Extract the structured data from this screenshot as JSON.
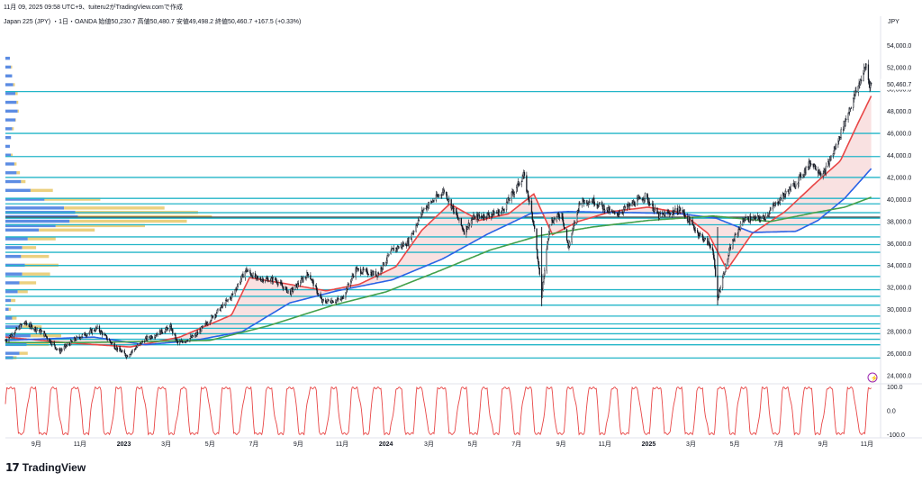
{
  "header": {
    "line1": "11月 09, 2025 09:58 UTC+9、tuiteru2がTradingView.comで作成",
    "line2": "Japan 225 (JPY) ・1日・OANDA 始値50,230.7 高値50,480.7 安値49,498.2 終値50,460.7 +167.5 (+0.33%)"
  },
  "footer": {
    "logo_mark": "17",
    "logo_text": "TradingView"
  },
  "colors": {
    "candle": "#131722",
    "ma_short": "#e84646",
    "ma_mid": "#2a62e6",
    "ma_long": "#44a04a",
    "level_line": "#22b5c8",
    "profile_blue": "#4a7fe0",
    "profile_yellow": "#e8c868",
    "poc_line": "#444444",
    "osc_line": "#e84646",
    "fill_pink": "#f7d7d7",
    "fill_blue": "#cfdcf5"
  },
  "chart_data": [
    {
      "type": "line",
      "series_type": "candlestick with moving averages, horizontal levels and volume profile",
      "currency_label": "JPY",
      "y_ticks": [
        "54,000.0",
        "52,000.0",
        "50,000.0",
        "48,000.0",
        "46,000.0",
        "44,000.0",
        "42,000.0",
        "40,000.0",
        "38,000.0",
        "36,000.0",
        "34,000.0",
        "32,000.0",
        "30,000.0",
        "28,000.0",
        "26,000.0",
        "24,000.0"
      ],
      "ylim": [
        23500,
        55500
      ],
      "last_price_label": "50,460.7",
      "last_price": 50460.7,
      "x_ticks": [
        {
          "label": "9月",
          "date": "2022-09-01"
        },
        {
          "label": "11月",
          "date": "2022-11-01"
        },
        {
          "label": "2023",
          "date": "2023-01-01"
        },
        {
          "label": "3月",
          "date": "2023-03-01"
        },
        {
          "label": "5月",
          "date": "2023-05-01"
        },
        {
          "label": "7月",
          "date": "2023-07-01"
        },
        {
          "label": "9月",
          "date": "2023-09-01"
        },
        {
          "label": "11月",
          "date": "2023-11-01"
        },
        {
          "label": "2024",
          "date": "2024-01-01"
        },
        {
          "label": "3月",
          "date": "2024-03-01"
        },
        {
          "label": "5月",
          "date": "2024-05-01"
        },
        {
          "label": "7月",
          "date": "2024-07-01"
        },
        {
          "label": "9月",
          "date": "2024-09-01"
        },
        {
          "label": "11月",
          "date": "2024-11-01"
        },
        {
          "label": "2025",
          "date": "2025-01-01"
        },
        {
          "label": "3月",
          "date": "2025-03-01"
        },
        {
          "label": "5月",
          "date": "2025-05-01"
        },
        {
          "label": "7月",
          "date": "2025-07-01"
        },
        {
          "label": "9月",
          "date": "2025-09-01"
        },
        {
          "label": "11月",
          "date": "2025-11-01"
        }
      ],
      "x_range": [
        "2022-07-20",
        "2025-11-20"
      ],
      "price_path": [
        [
          "2022-07-20",
          27200
        ],
        [
          "2022-08-15",
          28800
        ],
        [
          "2022-09-10",
          27900
        ],
        [
          "2022-10-03",
          26200
        ],
        [
          "2022-10-25",
          27300
        ],
        [
          "2022-11-25",
          28300
        ],
        [
          "2022-12-20",
          26600
        ],
        [
          "2023-01-05",
          25800
        ],
        [
          "2023-01-31",
          27300
        ],
        [
          "2023-03-07",
          28400
        ],
        [
          "2023-03-17",
          26900
        ],
        [
          "2023-04-10",
          27600
        ],
        [
          "2023-05-01",
          29100
        ],
        [
          "2023-05-31",
          31200
        ],
        [
          "2023-06-20",
          33600
        ],
        [
          "2023-07-05",
          32800
        ],
        [
          "2023-07-31",
          32700
        ],
        [
          "2023-08-20",
          31500
        ],
        [
          "2023-09-15",
          33300
        ],
        [
          "2023-10-04",
          30700
        ],
        [
          "2023-10-31",
          30900
        ],
        [
          "2023-11-20",
          33600
        ],
        [
          "2023-12-20",
          33200
        ],
        [
          "2024-01-10",
          35400
        ],
        [
          "2024-02-01",
          36100
        ],
        [
          "2024-02-22",
          39100
        ],
        [
          "2024-03-22",
          40800
        ],
        [
          "2024-04-19",
          37100
        ],
        [
          "2024-05-01",
          38300
        ],
        [
          "2024-06-10",
          38900
        ],
        [
          "2024-07-11",
          42200
        ],
        [
          "2024-07-25",
          37800
        ],
        [
          "2024-08-05",
          31200
        ],
        [
          "2024-08-16",
          37900
        ],
        [
          "2024-09-02",
          38700
        ],
        [
          "2024-09-11",
          35600
        ],
        [
          "2024-09-27",
          39800
        ],
        [
          "2024-10-15",
          39900
        ],
        [
          "2024-11-15",
          38600
        ],
        [
          "2024-12-27",
          40300
        ],
        [
          "2025-01-15",
          38500
        ],
        [
          "2025-02-15",
          39100
        ],
        [
          "2025-03-10",
          37000
        ],
        [
          "2025-03-31",
          35600
        ],
        [
          "2025-04-07",
          31100
        ],
        [
          "2025-04-25",
          35700
        ],
        [
          "2025-05-13",
          38200
        ],
        [
          "2025-06-10",
          38300
        ],
        [
          "2025-07-01",
          39900
        ],
        [
          "2025-07-25",
          41500
        ],
        [
          "2025-08-15",
          43400
        ],
        [
          "2025-09-01",
          42200
        ],
        [
          "2025-09-20",
          45000
        ],
        [
          "2025-10-06",
          47900
        ],
        [
          "2025-10-31",
          52200
        ],
        [
          "2025-11-04",
          50500
        ],
        [
          "2025-11-07",
          50460
        ]
      ],
      "moving_averages": [
        {
          "color": "ma_short",
          "points": [
            [
              "2022-07-20",
              27500
            ],
            [
              "2022-10-10",
              27000
            ],
            [
              "2023-01-10",
              26600
            ],
            [
              "2023-03-20",
              27500
            ],
            [
              "2023-05-31",
              29500
            ],
            [
              "2023-06-25",
              32900
            ],
            [
              "2023-08-10",
              32400
            ],
            [
              "2023-10-10",
              31700
            ],
            [
              "2023-11-25",
              32300
            ],
            [
              "2024-01-15",
              33900
            ],
            [
              "2024-02-20",
              37200
            ],
            [
              "2024-03-30",
              39600
            ],
            [
              "2024-05-10",
              38100
            ],
            [
              "2024-06-20",
              38700
            ],
            [
              "2024-07-25",
              40500
            ],
            [
              "2024-08-20",
              36800
            ],
            [
              "2024-09-25",
              38000
            ],
            [
              "2024-11-10",
              38900
            ],
            [
              "2024-12-31",
              39300
            ],
            [
              "2025-02-15",
              38800
            ],
            [
              "2025-03-25",
              36900
            ],
            [
              "2025-04-20",
              33600
            ],
            [
              "2025-05-25",
              36900
            ],
            [
              "2025-07-10",
              38900
            ],
            [
              "2025-08-20",
              41400
            ],
            [
              "2025-09-25",
              43500
            ],
            [
              "2025-10-20",
              47000
            ],
            [
              "2025-11-07",
              49400
            ]
          ]
        },
        {
          "color": "ma_mid",
          "points": [
            [
              "2022-07-20",
              27200
            ],
            [
              "2022-11-20",
              27500
            ],
            [
              "2023-01-31",
              26800
            ],
            [
              "2023-04-10",
              27200
            ],
            [
              "2023-06-15",
              28000
            ],
            [
              "2023-08-20",
              30600
            ],
            [
              "2023-10-25",
              31700
            ],
            [
              "2024-01-10",
              32700
            ],
            [
              "2024-03-20",
              34600
            ],
            [
              "2024-05-20",
              36800
            ],
            [
              "2024-07-20",
              38700
            ],
            [
              "2024-09-10",
              38900
            ],
            [
              "2024-12-10",
              38800
            ],
            [
              "2025-02-15",
              38700
            ],
            [
              "2025-04-05",
              38300
            ],
            [
              "2025-05-25",
              37000
            ],
            [
              "2025-07-25",
              37100
            ],
            [
              "2025-08-25",
              38100
            ],
            [
              "2025-10-01",
              40100
            ],
            [
              "2025-11-07",
              42800
            ]
          ]
        },
        {
          "color": "ma_long",
          "points": [
            [
              "2022-07-20",
              27000
            ],
            [
              "2022-11-01",
              27000
            ],
            [
              "2023-02-01",
              27100
            ],
            [
              "2023-05-01",
              27200
            ],
            [
              "2023-07-20",
              28500
            ],
            [
              "2023-10-20",
              30400
            ],
            [
              "2024-01-01",
              31600
            ],
            [
              "2024-03-15",
              33500
            ],
            [
              "2024-05-25",
              35400
            ],
            [
              "2024-08-01",
              36700
            ],
            [
              "2024-10-15",
              37500
            ],
            [
              "2025-01-01",
              38100
            ],
            [
              "2025-04-01",
              38500
            ],
            [
              "2025-06-20",
              38000
            ],
            [
              "2025-08-20",
              38800
            ],
            [
              "2025-10-01",
              39300
            ],
            [
              "2025-11-07",
              40200
            ]
          ]
        }
      ],
      "horizontal_levels": [
        49800,
        46000,
        43900,
        42000,
        40100,
        39600,
        38800,
        38300,
        37700,
        36600,
        35900,
        35200,
        34000,
        33000,
        31800,
        31200,
        30400,
        29400,
        28700,
        28300,
        27800,
        27300,
        26800,
        25600
      ],
      "volume_profile": [
        {
          "price": 52800,
          "blue": 8,
          "yellow": 0
        },
        {
          "price": 52000,
          "blue": 10,
          "yellow": 2
        },
        {
          "price": 51200,
          "blue": 12,
          "yellow": 0
        },
        {
          "price": 50400,
          "blue": 14,
          "yellow": 3
        },
        {
          "price": 49600,
          "blue": 18,
          "yellow": 4
        },
        {
          "price": 48800,
          "blue": 20,
          "yellow": 3
        },
        {
          "price": 48000,
          "blue": 22,
          "yellow": 2
        },
        {
          "price": 47200,
          "blue": 18,
          "yellow": 1
        },
        {
          "price": 46400,
          "blue": 12,
          "yellow": 3
        },
        {
          "price": 45600,
          "blue": 10,
          "yellow": 0
        },
        {
          "price": 44800,
          "blue": 8,
          "yellow": 0
        },
        {
          "price": 44000,
          "blue": 10,
          "yellow": 3
        },
        {
          "price": 43200,
          "blue": 16,
          "yellow": 4
        },
        {
          "price": 42400,
          "blue": 20,
          "yellow": 6
        },
        {
          "price": 41600,
          "blue": 28,
          "yellow": 8
        },
        {
          "price": 40800,
          "blue": 45,
          "yellow": 40
        },
        {
          "price": 40000,
          "blue": 70,
          "yellow": 100
        },
        {
          "price": 39200,
          "blue": 105,
          "yellow": 180
        },
        {
          "price": 38800,
          "blue": 125,
          "yellow": 220
        },
        {
          "price": 38400,
          "blue": 130,
          "yellow": 240
        },
        {
          "price": 38000,
          "blue": 115,
          "yellow": 210
        },
        {
          "price": 37600,
          "blue": 90,
          "yellow": 160
        },
        {
          "price": 37200,
          "blue": 60,
          "yellow": 100
        },
        {
          "price": 36400,
          "blue": 40,
          "yellow": 50
        },
        {
          "price": 35600,
          "blue": 30,
          "yellow": 25
        },
        {
          "price": 34800,
          "blue": 28,
          "yellow": 50
        },
        {
          "price": 34000,
          "blue": 35,
          "yellow": 60
        },
        {
          "price": 33200,
          "blue": 30,
          "yellow": 50
        },
        {
          "price": 32400,
          "blue": 25,
          "yellow": 30
        },
        {
          "price": 31600,
          "blue": 22,
          "yellow": 18
        },
        {
          "price": 30800,
          "blue": 10,
          "yellow": 8
        },
        {
          "price": 30000,
          "blue": 6,
          "yellow": 4
        },
        {
          "price": 29200,
          "blue": 12,
          "yellow": 8
        },
        {
          "price": 28400,
          "blue": 30,
          "yellow": 35
        },
        {
          "price": 27600,
          "blue": 45,
          "yellow": 55
        },
        {
          "price": 26800,
          "blue": 38,
          "yellow": 40
        },
        {
          "price": 26000,
          "blue": 25,
          "yellow": 15
        },
        {
          "price": 25600,
          "blue": 14,
          "yellow": 6
        }
      ],
      "poc_price": 38400,
      "oscillator": {
        "y_ticks": [
          "100.0",
          "0.0",
          "-100.0"
        ],
        "ylim": [
          -105,
          105
        ],
        "cycle_days": 30
      }
    }
  ]
}
